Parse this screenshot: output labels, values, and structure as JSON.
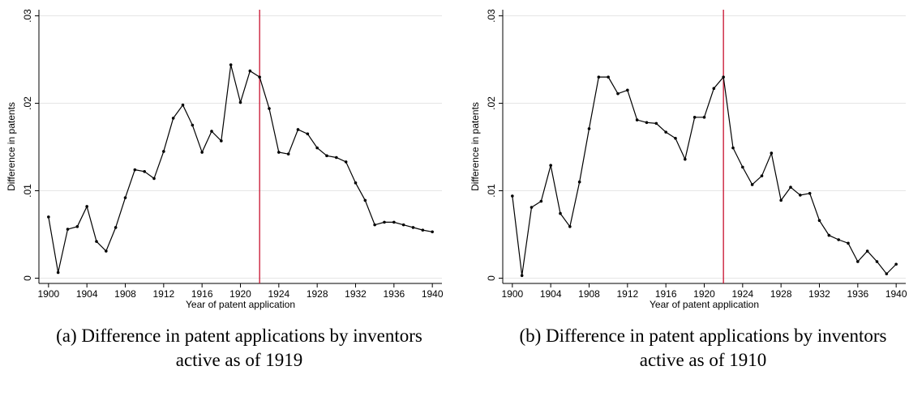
{
  "chart_data": [
    {
      "type": "line",
      "caption": "(a) Difference in patent applications by inventors active as of 1919",
      "xlabel": "Year of patent application",
      "ylabel": "Difference in patents",
      "x": [
        1900,
        1901,
        1902,
        1903,
        1904,
        1905,
        1906,
        1907,
        1908,
        1909,
        1910,
        1911,
        1912,
        1913,
        1914,
        1915,
        1916,
        1917,
        1918,
        1919,
        1920,
        1921,
        1922,
        1923,
        1924,
        1925,
        1926,
        1927,
        1928,
        1929,
        1930,
        1931,
        1932,
        1933,
        1934,
        1935,
        1936,
        1937,
        1938,
        1939,
        1940
      ],
      "values": [
        0.007,
        0.00065,
        0.0056,
        0.0059,
        0.0082,
        0.0042,
        0.0031,
        0.0058,
        0.0092,
        0.0124,
        0.0122,
        0.0114,
        0.0145,
        0.0183,
        0.0198,
        0.0175,
        0.0144,
        0.0168,
        0.0157,
        0.0244,
        0.0201,
        0.0237,
        0.023,
        0.0194,
        0.0144,
        0.0142,
        0.017,
        0.0165,
        0.0149,
        0.014,
        0.0138,
        0.0133,
        0.0109,
        0.0089,
        0.0061,
        0.0064,
        0.0064,
        0.0061,
        0.0058,
        0.0055,
        0.0053
      ],
      "color": "#000000",
      "vline": {
        "x": 1922,
        "color": "#c8102e"
      },
      "xlim": [
        1899,
        1941
      ],
      "xticks": [
        1900,
        1904,
        1908,
        1912,
        1916,
        1920,
        1924,
        1928,
        1932,
        1936,
        1940
      ],
      "ylim": [
        -0.0006,
        0.0307
      ],
      "yticks": [
        0,
        {
          "value": 0.01,
          "label": ".01"
        },
        {
          "value": 0.02,
          "label": ".02"
        },
        {
          "value": 0.03,
          "label": ".03"
        }
      ],
      "grid": true
    },
    {
      "type": "line",
      "caption": "(b) Difference in patent applications by inventors active as of 1910",
      "xlabel": "Year of patent application",
      "ylabel": "Difference in patents",
      "x": [
        1900,
        1901,
        1902,
        1903,
        1904,
        1905,
        1906,
        1907,
        1908,
        1909,
        1910,
        1911,
        1912,
        1913,
        1914,
        1915,
        1916,
        1917,
        1918,
        1919,
        1920,
        1921,
        1922,
        1923,
        1924,
        1925,
        1926,
        1927,
        1928,
        1929,
        1930,
        1931,
        1932,
        1933,
        1934,
        1935,
        1936,
        1937,
        1938,
        1939,
        1940
      ],
      "values": [
        0.0094,
        0.0003,
        0.0081,
        0.0088,
        0.0129,
        0.0074,
        0.0059,
        0.011,
        0.0171,
        0.023,
        0.023,
        0.0211,
        0.0215,
        0.0181,
        0.0178,
        0.0177,
        0.0167,
        0.016,
        0.0136,
        0.0184,
        0.0184,
        0.0217,
        0.023,
        0.0149,
        0.0127,
        0.0107,
        0.0117,
        0.0143,
        0.0089,
        0.0104,
        0.0095,
        0.0097,
        0.0066,
        0.0049,
        0.0044,
        0.004,
        0.0019,
        0.0031,
        0.0019,
        0.0005,
        0.0016
      ],
      "color": "#000000",
      "vline": {
        "x": 1922,
        "color": "#c8102e"
      },
      "xlim": [
        1899,
        1941
      ],
      "xticks": [
        1900,
        1904,
        1908,
        1912,
        1916,
        1920,
        1924,
        1928,
        1932,
        1936,
        1940
      ],
      "ylim": [
        -0.0006,
        0.0307
      ],
      "yticks": [
        0,
        {
          "value": 0.01,
          "label": ".01"
        },
        {
          "value": 0.02,
          "label": ".02"
        },
        {
          "value": 0.03,
          "label": ".03"
        }
      ],
      "grid": true
    }
  ]
}
